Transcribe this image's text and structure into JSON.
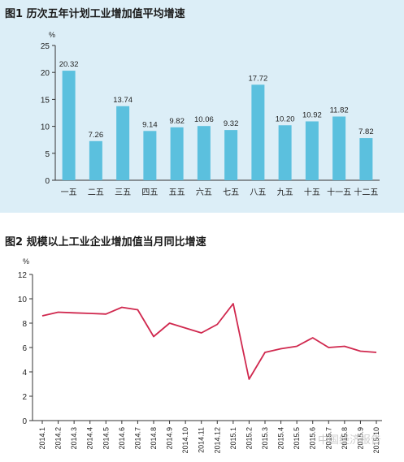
{
  "figure1": {
    "title": "图1  历次五年计划工业增加值平均增速",
    "unit": "%"
  },
  "figure2": {
    "title": "图2  规模以上工业企业增加值当月同比增速",
    "unit": "%"
  },
  "watermark": "中国经济报告",
  "colors": {
    "bar": "#5bc0de",
    "line": "#d0284e",
    "panel_bg": "#dceef7"
  },
  "chart_data": [
    {
      "type": "bar",
      "categories": [
        "一五",
        "二五",
        "三五",
        "四五",
        "五五",
        "六五",
        "七五",
        "八五",
        "九五",
        "十五",
        "十一五",
        "十二五"
      ],
      "values": [
        20.32,
        7.26,
        13.74,
        9.14,
        9.82,
        10.06,
        9.32,
        17.72,
        10.2,
        10.92,
        11.82,
        7.82
      ],
      "value_labels": [
        "20.32",
        "7.26",
        "13.74",
        "9.14",
        "9.82",
        "10.06",
        "9.32",
        "17.72",
        "10.20",
        "10.92",
        "11.82",
        "7.82"
      ],
      "ylabel": "%",
      "ylim": [
        0,
        25
      ],
      "yticks": [
        0,
        5,
        10,
        15,
        20,
        25
      ],
      "grid": false,
      "legend": "none"
    },
    {
      "type": "line",
      "x": [
        "2014.1",
        "2014.2",
        "2014.3",
        "2014.4",
        "2014.5",
        "2014.6",
        "2014.7",
        "2014.8",
        "2014.9",
        "2014.10",
        "2014.11",
        "2014.12",
        "2015.1",
        "2015.2",
        "2015.3",
        "2015.4",
        "2015.5",
        "2015.6",
        "2015.7",
        "2015.8",
        "2015.9",
        "2015.10"
      ],
      "series": [
        {
          "values": [
            8.6,
            8.9,
            8.85,
            8.8,
            8.75,
            9.3,
            9.1,
            6.9,
            8.0,
            7.6,
            7.2,
            7.9,
            9.6,
            3.4,
            5.6,
            5.9,
            6.1,
            6.8,
            6.0,
            6.1,
            5.7,
            5.6
          ]
        }
      ],
      "ylabel": "%",
      "ylim": [
        0,
        12
      ],
      "yticks": [
        0,
        2,
        4,
        6,
        8,
        10,
        12
      ],
      "grid": false,
      "legend": "none"
    }
  ]
}
